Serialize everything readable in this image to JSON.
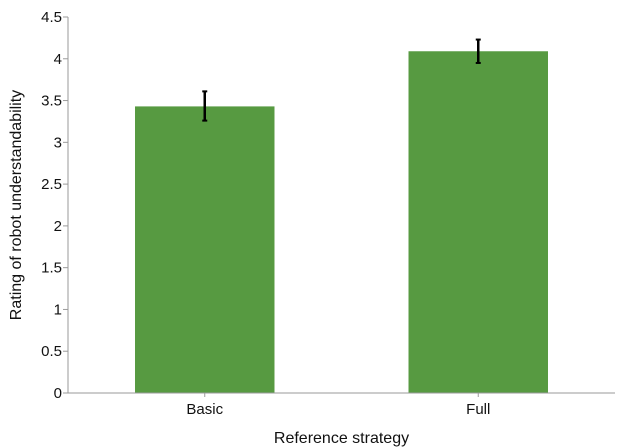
{
  "chart_data": {
    "type": "bar",
    "title": "",
    "xlabel": "Reference strategy",
    "ylabel": "Rating of robot understandability",
    "categories": [
      "Basic",
      "Full"
    ],
    "values": [
      3.43,
      4.09
    ],
    "error_low": [
      3.26,
      3.95
    ],
    "error_high": [
      3.61,
      4.23
    ],
    "ylim": [
      0,
      4.5
    ],
    "yticks": [
      0,
      0.5,
      1,
      1.5,
      2,
      2.5,
      3,
      3.5,
      4,
      4.5
    ],
    "ytick_labels": [
      "0",
      "0.5",
      "1",
      "1.5",
      "2",
      "2.5",
      "3",
      "3.5",
      "4",
      "4.5"
    ],
    "grid": false,
    "legend": "none",
    "colors": {
      "bar": "#579a41",
      "axis": "#9a9a9a",
      "error_bar": "#000000"
    }
  }
}
